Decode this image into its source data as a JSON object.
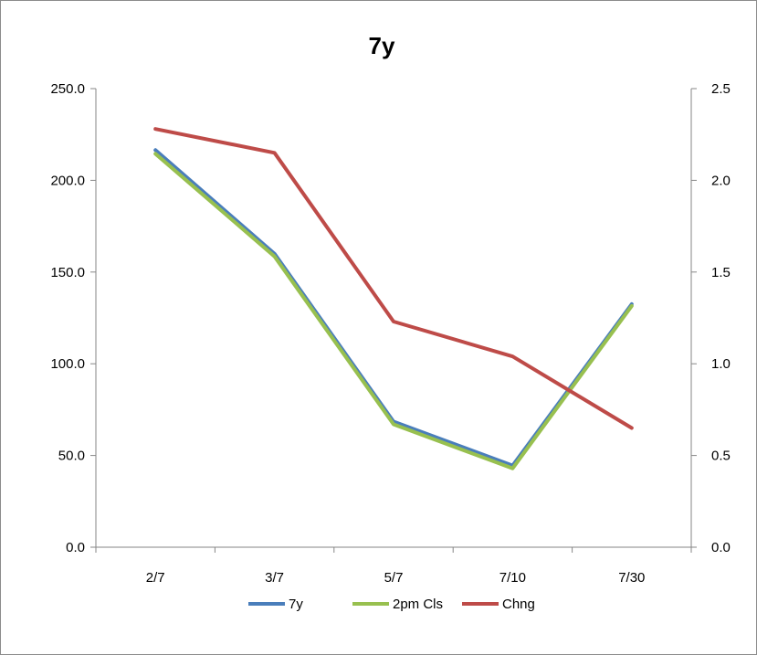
{
  "chart_data": {
    "type": "line",
    "title": "7y",
    "categories": [
      "2/7",
      "3/7",
      "5/7",
      "7/10",
      "7/30"
    ],
    "y_left": {
      "ylim": [
        0,
        250
      ],
      "ticks": [
        "0.0",
        "50.0",
        "100.0",
        "150.0",
        "200.0",
        "250.0"
      ]
    },
    "y_right": {
      "ylim": [
        0,
        2.5
      ],
      "ticks": [
        "0.0",
        "0.5",
        "1.0",
        "1.5",
        "2.0",
        "2.5"
      ]
    },
    "series": [
      {
        "name": "7y",
        "axis": "left",
        "color": "#4a7ebb",
        "values": [
          216.5,
          160.0,
          68.5,
          44.5,
          132.5
        ]
      },
      {
        "name": "2pm Cls",
        "axis": "left",
        "color": "#98c04f",
        "values": [
          214.5,
          158.5,
          67.0,
          43.0,
          131.5
        ]
      },
      {
        "name": "Chng",
        "axis": "right",
        "color": "#be4b48",
        "values": [
          2.28,
          2.15,
          1.23,
          1.04,
          0.65
        ]
      }
    ],
    "grid": false,
    "legend": "bottom"
  }
}
